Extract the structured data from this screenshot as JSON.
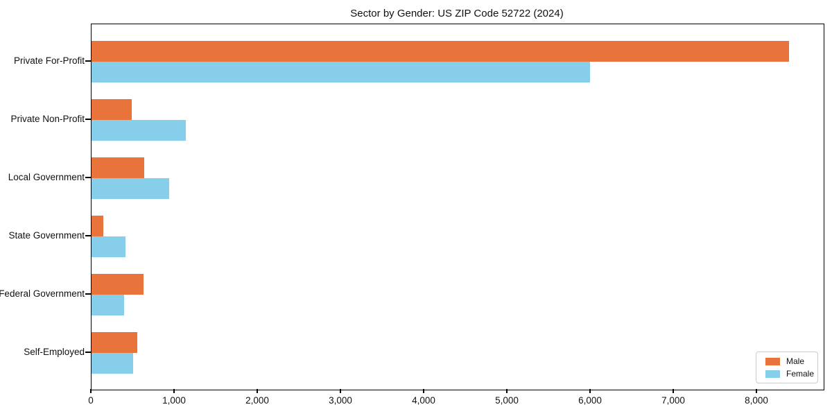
{
  "chart_data": {
    "type": "bar",
    "orientation": "horizontal",
    "title": "Sector by Gender: US ZIP Code 52722 (2024)",
    "categories": [
      "Private For-Profit",
      "Private Non-Profit",
      "Local Government",
      "State Government",
      "Federal Government",
      "Self-Employed"
    ],
    "series": [
      {
        "name": "Male",
        "color": "#E8743B",
        "values": [
          8380,
          485,
          635,
          140,
          625,
          550
        ]
      },
      {
        "name": "Female",
        "color": "#87CEEB",
        "values": [
          5990,
          1135,
          935,
          410,
          390,
          500
        ]
      }
    ],
    "xlabel": "",
    "ylabel": "",
    "xlim": [
      0,
      8800
    ],
    "xticks": {
      "values": [
        0,
        1000,
        2000,
        3000,
        4000,
        5000,
        6000,
        7000,
        8000
      ],
      "labels": [
        "0",
        "1,000",
        "2,000",
        "3,000",
        "4,000",
        "5,000",
        "6,000",
        "7,000",
        "8,000"
      ]
    },
    "grid": false,
    "plot_background": "#ffffff",
    "spine_color": "#000000",
    "legend": {
      "position": "lower right",
      "entries": [
        "Male",
        "Female"
      ]
    }
  }
}
